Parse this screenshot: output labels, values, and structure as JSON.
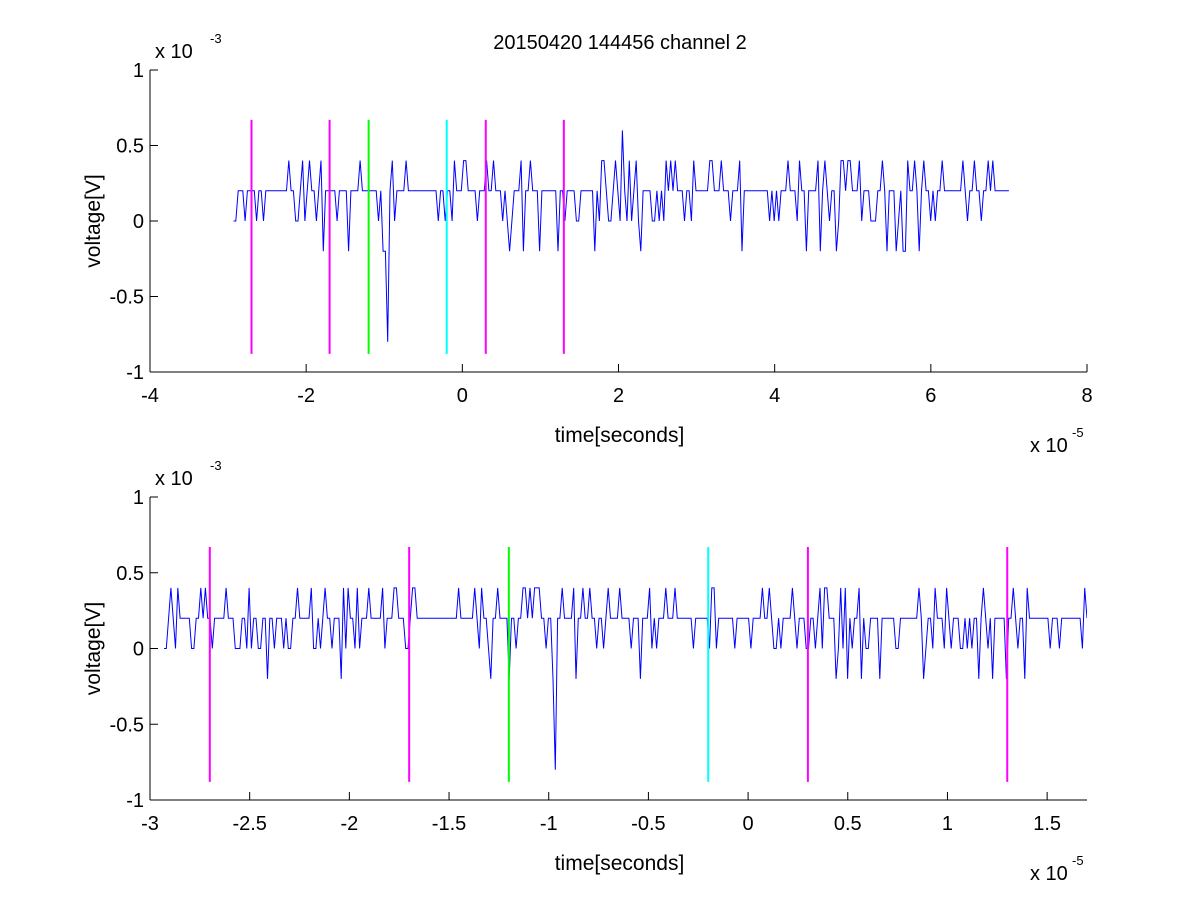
{
  "figure": {
    "title": "20150420 144456 channel 2"
  },
  "colors": {
    "background": "#ffffff",
    "axes": "#000000",
    "signal": "#0000ff",
    "marker_magenta": "#ff00ff",
    "marker_green": "#00ff00",
    "marker_cyan": "#00ffff"
  },
  "chart_data": [
    {
      "type": "line",
      "title": "20150420 144456 channel 2",
      "xlabel": "time[seconds]",
      "ylabel": "voltage[V]",
      "x_multiplier_label": "x 10",
      "x_multiplier_exponent": "-5",
      "y_multiplier_label": "x 10",
      "y_multiplier_exponent": "-3",
      "xlim": [
        -4,
        8
      ],
      "ylim": [
        -1,
        1
      ],
      "x_ticks": [
        "-4",
        "-2",
        "0",
        "2",
        "4",
        "6",
        "8"
      ],
      "y_ticks": [
        "-1",
        "-0.5",
        "0",
        "0.5",
        "1"
      ],
      "grid": false,
      "series": [
        {
          "color": "#0000ff",
          "x_range": [
            -2.93,
            7.0
          ],
          "baseline": 0.2,
          "levels": [
            -0.2,
            0,
            0.2,
            0.4
          ],
          "notable_points": [
            {
              "x": -0.97,
              "y": -0.8
            },
            {
              "x": 2.05,
              "y": 0.6
            }
          ]
        }
      ],
      "markers": [
        {
          "x": -2.7,
          "y_range": [
            -0.88,
            0.67
          ],
          "color": "#ff00ff"
        },
        {
          "x": -1.7,
          "y_range": [
            -0.88,
            0.67
          ],
          "color": "#ff00ff"
        },
        {
          "x": -1.2,
          "y_range": [
            -0.88,
            0.67
          ],
          "color": "#00ff00"
        },
        {
          "x": -0.2,
          "y_range": [
            -0.88,
            0.67
          ],
          "color": "#00ffff"
        },
        {
          "x": 0.3,
          "y_range": [
            -0.88,
            0.67
          ],
          "color": "#ff00ff"
        },
        {
          "x": 1.3,
          "y_range": [
            -0.88,
            0.67
          ],
          "color": "#ff00ff"
        }
      ]
    },
    {
      "type": "line",
      "xlabel": "time[seconds]",
      "ylabel": "voltage[V]",
      "x_multiplier_label": "x 10",
      "x_multiplier_exponent": "-5",
      "y_multiplier_label": "x 10",
      "y_multiplier_exponent": "-3",
      "xlim": [
        -3.0,
        1.7
      ],
      "ylim": [
        -1,
        1
      ],
      "x_ticks": [
        "-3",
        "-2.5",
        "-2",
        "-1.5",
        "-1",
        "-0.5",
        "0",
        "0.5",
        "1",
        "1.5"
      ],
      "y_ticks": [
        "-1",
        "-0.5",
        "0",
        "0.5",
        "1"
      ],
      "grid": false,
      "series": [
        {
          "color": "#0000ff",
          "x_range": [
            -2.93,
            1.7
          ],
          "baseline": 0.2,
          "levels": [
            -0.2,
            0,
            0.2,
            0.4
          ],
          "notable_points": [
            {
              "x": -0.97,
              "y": -0.8
            }
          ]
        }
      ],
      "markers": [
        {
          "x": -2.7,
          "y_range": [
            -0.88,
            0.67
          ],
          "color": "#ff00ff"
        },
        {
          "x": -1.7,
          "y_range": [
            -0.88,
            0.67
          ],
          "color": "#ff00ff"
        },
        {
          "x": -1.2,
          "y_range": [
            -0.88,
            0.67
          ],
          "color": "#00ff00"
        },
        {
          "x": -0.2,
          "y_range": [
            -0.88,
            0.67
          ],
          "color": "#00ffff"
        },
        {
          "x": 0.3,
          "y_range": [
            -0.88,
            0.67
          ],
          "color": "#ff00ff"
        },
        {
          "x": 1.3,
          "y_range": [
            -0.88,
            0.67
          ],
          "color": "#ff00ff"
        }
      ]
    }
  ]
}
